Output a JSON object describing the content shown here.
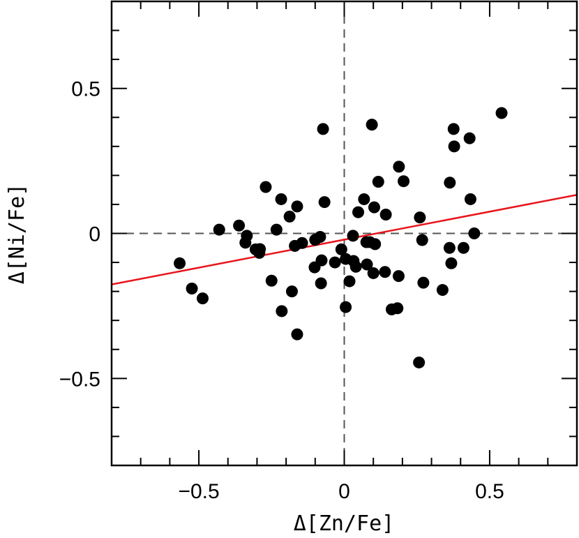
{
  "chart_data": {
    "type": "scatter",
    "xlabel": "Δ[Zn/Fe]",
    "ylabel": "Δ[Ni/Fe]",
    "xlim": [
      -0.8,
      0.8
    ],
    "ylim": [
      -0.8,
      0.8
    ],
    "x_ticks": [
      {
        "value": -0.5,
        "label": "−0.5"
      },
      {
        "value": 0,
        "label": "0"
      },
      {
        "value": 0.5,
        "label": "0.5"
      }
    ],
    "y_ticks": [
      {
        "value": -0.5,
        "label": "−0.5"
      },
      {
        "value": 0,
        "label": "0"
      },
      {
        "value": 0.5,
        "label": "0.5"
      }
    ],
    "minor_tick_step": 0.1,
    "reference_lines": {
      "x": 0,
      "y": 0,
      "style": "dashed",
      "color": "#555555"
    },
    "fit_line": {
      "x": [
        -0.8,
        0.8
      ],
      "y": [
        -0.176,
        0.133
      ],
      "color": "#e8141b"
    },
    "marker_color": "#000000",
    "points": [
      [
        -0.566,
        -0.103
      ],
      [
        -0.524,
        -0.19
      ],
      [
        -0.487,
        -0.224
      ],
      [
        -0.43,
        0.013
      ],
      [
        -0.362,
        0.027
      ],
      [
        -0.335,
        -0.008
      ],
      [
        -0.34,
        -0.032
      ],
      [
        -0.305,
        -0.055
      ],
      [
        -0.292,
        -0.067
      ],
      [
        -0.29,
        -0.054
      ],
      [
        -0.27,
        0.16
      ],
      [
        -0.25,
        -0.163
      ],
      [
        -0.233,
        0.013
      ],
      [
        -0.217,
        0.118
      ],
      [
        -0.215,
        -0.268
      ],
      [
        -0.188,
        0.058
      ],
      [
        -0.18,
        -0.2
      ],
      [
        -0.162,
        0.093
      ],
      [
        -0.162,
        -0.348
      ],
      [
        -0.17,
        -0.043
      ],
      [
        -0.145,
        -0.033
      ],
      [
        -0.102,
        -0.117
      ],
      [
        -0.1,
        -0.022
      ],
      [
        -0.083,
        -0.012
      ],
      [
        -0.08,
        -0.172
      ],
      [
        -0.078,
        -0.093
      ],
      [
        -0.073,
        0.36
      ],
      [
        -0.068,
        0.108
      ],
      [
        -0.032,
        -0.1
      ],
      [
        -0.01,
        -0.055
      ],
      [
        0.005,
        -0.088
      ],
      [
        0.005,
        -0.254
      ],
      [
        0.018,
        -0.165
      ],
      [
        0.03,
        -0.008
      ],
      [
        0.032,
        -0.095
      ],
      [
        0.04,
        -0.115
      ],
      [
        0.048,
        0.073
      ],
      [
        0.068,
        0.118
      ],
      [
        0.076,
        -0.03
      ],
      [
        0.078,
        -0.107
      ],
      [
        0.088,
        -0.03
      ],
      [
        0.095,
        0.375
      ],
      [
        0.1,
        -0.137
      ],
      [
        0.103,
        0.09
      ],
      [
        0.106,
        -0.037
      ],
      [
        0.117,
        0.178
      ],
      [
        0.14,
        -0.133
      ],
      [
        0.143,
        0.065
      ],
      [
        0.163,
        -0.262
      ],
      [
        0.183,
        -0.258
      ],
      [
        0.188,
        0.23
      ],
      [
        0.187,
        -0.147
      ],
      [
        0.204,
        0.18
      ],
      [
        0.257,
        -0.445
      ],
      [
        0.26,
        0.055
      ],
      [
        0.268,
        -0.023
      ],
      [
        0.272,
        -0.17
      ],
      [
        0.338,
        -0.195
      ],
      [
        0.362,
        -0.05
      ],
      [
        0.363,
        0.175
      ],
      [
        0.368,
        -0.103
      ],
      [
        0.376,
        0.36
      ],
      [
        0.378,
        0.3
      ],
      [
        0.41,
        -0.05
      ],
      [
        0.431,
        0.328
      ],
      [
        0.434,
        0.118
      ],
      [
        0.447,
        0.0
      ],
      [
        0.541,
        0.415
      ]
    ]
  }
}
